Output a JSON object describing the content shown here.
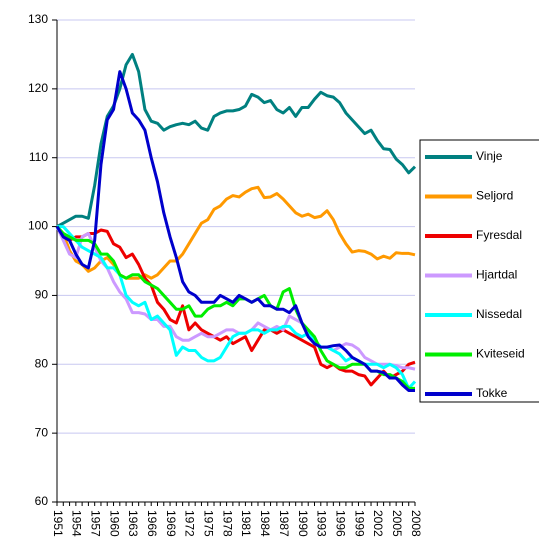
{
  "chart_data": {
    "type": "line",
    "categories": [
      "1951",
      null,
      null,
      "1954",
      null,
      null,
      "1957",
      null,
      null,
      "1960",
      null,
      null,
      "1963",
      null,
      null,
      "1966",
      null,
      null,
      "1969",
      null,
      null,
      "1972",
      null,
      null,
      "1975",
      null,
      null,
      "1978",
      null,
      null,
      "1981",
      null,
      null,
      "1984",
      null,
      null,
      "1987",
      null,
      null,
      "1990",
      null,
      null,
      "1993",
      null,
      null,
      "1996",
      null,
      null,
      "1999",
      null,
      null,
      "2002",
      null,
      null,
      "2005",
      null,
      null,
      "2008"
    ],
    "ylim": [
      60,
      130
    ],
    "yticks": [
      60,
      70,
      80,
      90,
      100,
      110,
      120,
      130
    ],
    "grid": true,
    "series": [
      {
        "name": "Vinje",
        "color": "#008080",
        "values": [
          100,
          100.5,
          101,
          101.5,
          101.5,
          101.2,
          106,
          112,
          116,
          117.5,
          120,
          123.5,
          125,
          122.5,
          117,
          115.3,
          115,
          114,
          114.5,
          114.8,
          115,
          114.8,
          115.3,
          114.3,
          114,
          116,
          116.5,
          116.8,
          116.8,
          117,
          117.5,
          119.2,
          118.8,
          118,
          118.3,
          117,
          116.5,
          117.3,
          116,
          117.3,
          117.3,
          118.5,
          119.5,
          119,
          118.8,
          118,
          116.5,
          115.5,
          114.5,
          113.5,
          114,
          112.5,
          111.3,
          111.2,
          109.8,
          109,
          107.8,
          108.7
        ]
      },
      {
        "name": "Seljord",
        "color": "#ff9900",
        "values": [
          100,
          99,
          96.5,
          95,
          94.5,
          93.5,
          94,
          95,
          95.5,
          94.5,
          93,
          92.5,
          92.5,
          92.5,
          93,
          92.5,
          93,
          94,
          95,
          95,
          96,
          97.5,
          99,
          100.5,
          101,
          102.5,
          103,
          104,
          104.5,
          104.3,
          105,
          105.5,
          105.7,
          104.2,
          104.3,
          104.8,
          104,
          103,
          102,
          101.5,
          101.8,
          101.3,
          101.5,
          102.3,
          101,
          99,
          97.5,
          96.3,
          96.5,
          96.4,
          96,
          95.3,
          95.7,
          95.4,
          96.2,
          96.1,
          96.1,
          95.9
        ]
      },
      {
        "name": "Fyresdal",
        "color": "#ee0000",
        "values": [
          100,
          98.5,
          98,
          98.5,
          98.5,
          99,
          99,
          99.5,
          99.3,
          97.5,
          97,
          95.5,
          96,
          94.5,
          92.5,
          91.5,
          89,
          88,
          86.5,
          86,
          88.5,
          85,
          86,
          85,
          84.5,
          84,
          83.5,
          84,
          83,
          83.5,
          84,
          82,
          83.5,
          85,
          85,
          84.5,
          85,
          84.5,
          84,
          83.5,
          83,
          82.5,
          80,
          79.5,
          80,
          79.3,
          79,
          79,
          78.5,
          78.3,
          77,
          78,
          79,
          78,
          78.5,
          79,
          80,
          80.3
        ]
      },
      {
        "name": "Hjartdal",
        "color": "#cc99ff",
        "values": [
          100,
          98,
          96,
          95.5,
          98.5,
          99,
          97,
          95,
          94,
          92,
          90.5,
          89.5,
          87.5,
          87.5,
          87.3,
          86.5,
          86.5,
          85.5,
          85.5,
          84,
          83.5,
          83.5,
          84,
          84.5,
          84,
          84,
          84.5,
          85,
          85,
          84.5,
          84.5,
          85,
          86,
          85.5,
          85,
          85.5,
          85,
          87,
          86.5,
          86,
          84.5,
          83,
          82.5,
          82.5,
          82,
          82.5,
          83,
          82.8,
          82.2,
          81,
          80.5,
          80,
          80,
          80,
          79.8,
          79.5,
          79.5,
          79.3
        ]
      },
      {
        "name": "Nissedal",
        "color": "#00ffff",
        "values": [
          100,
          100,
          99,
          98,
          97,
          96.5,
          96,
          95.5,
          94,
          94,
          93,
          90,
          89,
          88.5,
          89,
          86.5,
          87,
          86,
          85,
          81.3,
          82.5,
          82,
          82,
          81,
          80.5,
          80.5,
          81,
          82.5,
          84,
          84.5,
          84.5,
          85,
          85,
          84.5,
          85,
          85,
          85.5,
          85.5,
          84.5,
          84,
          84.5,
          83.5,
          82.5,
          82.5,
          82,
          81.5,
          80.5,
          81,
          80.5,
          80,
          80,
          80,
          79.5,
          80,
          79.5,
          78.5,
          76.5,
          77.5
        ]
      },
      {
        "name": "Kviteseid",
        "color": "#00ee00",
        "values": [
          100,
          99,
          98.5,
          98,
          98,
          98,
          97.5,
          96,
          96,
          95,
          93,
          92.5,
          93,
          93,
          92,
          91.5,
          91,
          90,
          89,
          88,
          88,
          88.5,
          87,
          87,
          88,
          88.5,
          88.5,
          89,
          88.5,
          89.5,
          89.5,
          89,
          89.5,
          90,
          88.5,
          88,
          90.5,
          91,
          88,
          86,
          85,
          84,
          82,
          80.5,
          80,
          79.5,
          79.5,
          80,
          80,
          80,
          79,
          79,
          78.5,
          78.5,
          78,
          77.5,
          76.5,
          76.5
        ]
      },
      {
        "name": "Tokke",
        "color": "#0000cc",
        "values": [
          100,
          98.5,
          98,
          96,
          94.5,
          94,
          98,
          109,
          115.5,
          117,
          122.5,
          120,
          116.5,
          115.5,
          114,
          110,
          106.5,
          102,
          98.5,
          95.5,
          92,
          90.5,
          90,
          89,
          89,
          89,
          90,
          89.5,
          89,
          90,
          89.5,
          89,
          89.5,
          88.5,
          88.5,
          88,
          88,
          87.5,
          88.5,
          86,
          84,
          83,
          82.5,
          82.5,
          82.7,
          82.8,
          82,
          81,
          80.5,
          80,
          79,
          79,
          78.8,
          78,
          78,
          77,
          76.2,
          76.2
        ]
      }
    ]
  }
}
